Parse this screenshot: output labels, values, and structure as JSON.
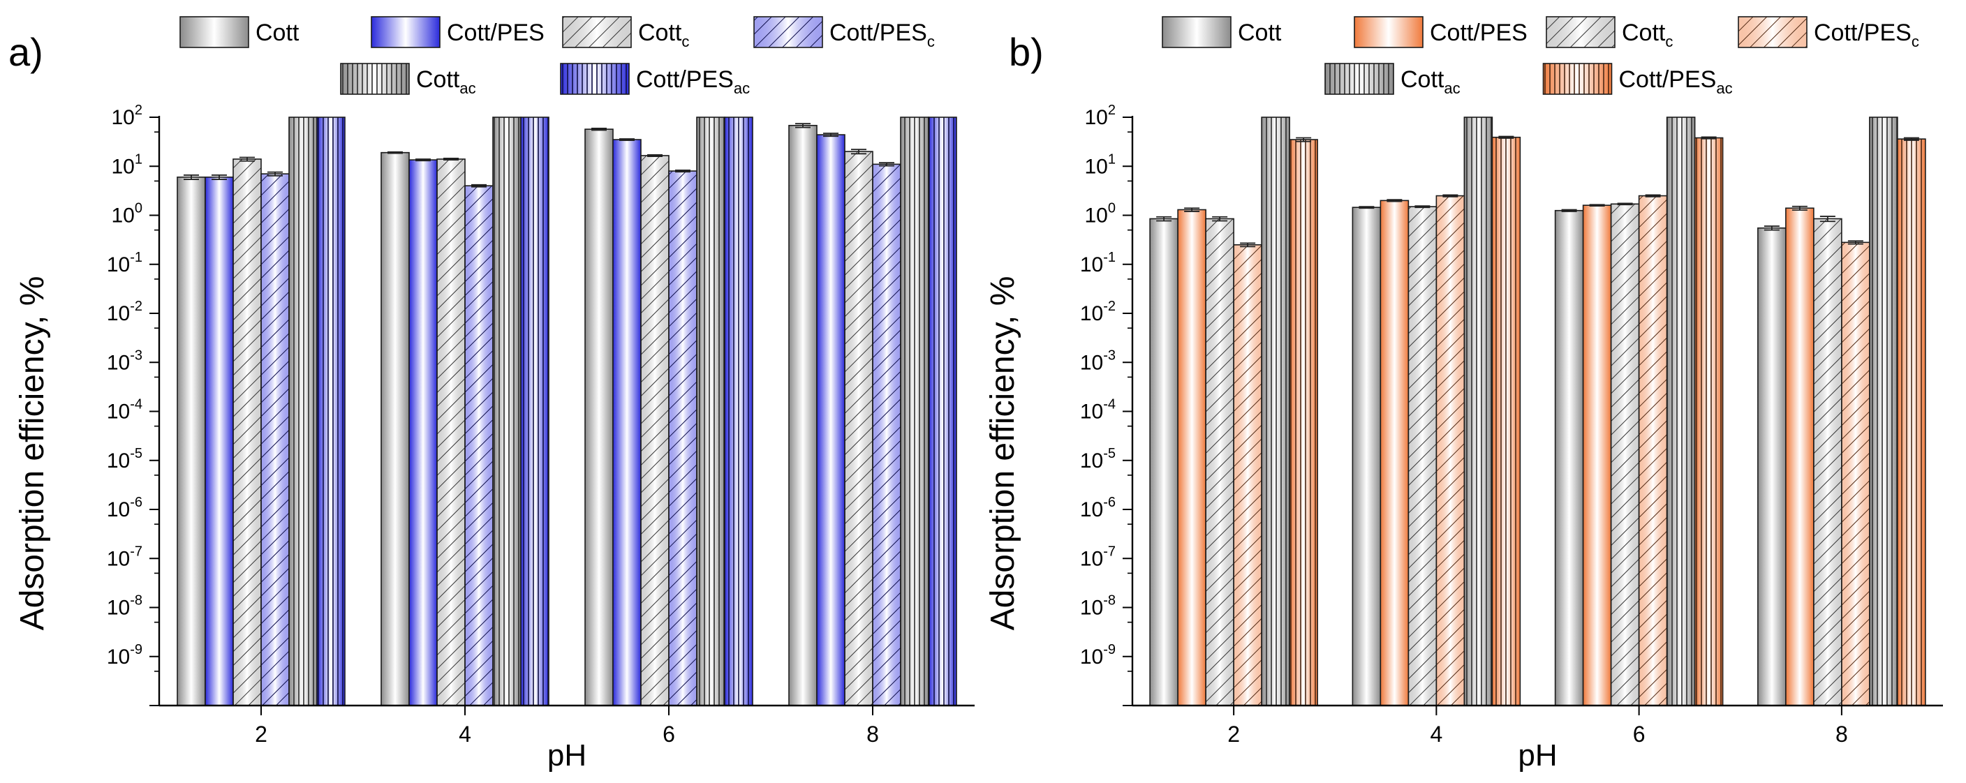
{
  "chart_data": [
    {
      "type": "bar",
      "panel_label": "a)",
      "title": "",
      "xlabel": "pH",
      "ylabel": "Adsorption efficiency, %",
      "yscale": "log",
      "ylim": [
        1e-10,
        100
      ],
      "categories": [
        "2",
        "4",
        "6",
        "8"
      ],
      "yticks": [
        {
          "base": "10",
          "exp": "-9"
        },
        {
          "base": "10",
          "exp": "-8"
        },
        {
          "base": "10",
          "exp": "-7"
        },
        {
          "base": "10",
          "exp": "-6"
        },
        {
          "base": "10",
          "exp": "-5"
        },
        {
          "base": "10",
          "exp": "-4"
        },
        {
          "base": "10",
          "exp": "-3"
        },
        {
          "base": "10",
          "exp": "-2"
        },
        {
          "base": "10",
          "exp": "-1"
        },
        {
          "base": "10",
          "exp": "0"
        },
        {
          "base": "10",
          "exp": "1"
        },
        {
          "base": "10",
          "exp": "2"
        }
      ],
      "legend_position": "top",
      "series": [
        {
          "name": "Cott",
          "sub": "",
          "fill": "gradient",
          "color": "#8c8c8c",
          "values": [
            6.0,
            19.0,
            57.0,
            68.0
          ],
          "errors": [
            0.6,
            0.6,
            2.5,
            6.0
          ]
        },
        {
          "name": "Cott/PES",
          "sub": "",
          "fill": "gradient",
          "color": "#2b2bdc",
          "values": [
            6.0,
            13.5,
            35.0,
            44.0
          ],
          "errors": [
            0.6,
            0.5,
            1.2,
            3.0
          ]
        },
        {
          "name": "Cott",
          "sub": "c",
          "fill": "hatch",
          "color": "#9a9a9a",
          "values": [
            14.0,
            14.0,
            16.5,
            20.0
          ],
          "errors": [
            1.2,
            0.5,
            0.6,
            2.0
          ]
        },
        {
          "name": "Cott/PES",
          "sub": "c",
          "fill": "hatch",
          "color": "#2b2bdc",
          "values": [
            7.0,
            4.0,
            8.0,
            11.0
          ],
          "errors": [
            0.6,
            0.2,
            0.3,
            0.8
          ]
        },
        {
          "name": "Cott",
          "sub": "ac",
          "fill": "vlines",
          "color": "#8c8c8c",
          "values": [
            100,
            100,
            100,
            100
          ],
          "errors": [
            0,
            0,
            0,
            0
          ]
        },
        {
          "name": "Cott/PES",
          "sub": "ac",
          "fill": "vlines",
          "color": "#2b2bdc",
          "values": [
            100,
            100,
            100,
            100
          ],
          "errors": [
            0,
            0,
            0,
            0
          ]
        }
      ]
    },
    {
      "type": "bar",
      "panel_label": "b)",
      "title": "",
      "xlabel": "pH",
      "ylabel": "Adsorption efficiency, %",
      "yscale": "log",
      "ylim": [
        1e-10,
        100
      ],
      "categories": [
        "2",
        "4",
        "6",
        "8"
      ],
      "yticks": [
        {
          "base": "10",
          "exp": "-9"
        },
        {
          "base": "10",
          "exp": "-8"
        },
        {
          "base": "10",
          "exp": "-7"
        },
        {
          "base": "10",
          "exp": "-6"
        },
        {
          "base": "10",
          "exp": "-5"
        },
        {
          "base": "10",
          "exp": "-4"
        },
        {
          "base": "10",
          "exp": "-3"
        },
        {
          "base": "10",
          "exp": "-2"
        },
        {
          "base": "10",
          "exp": "-1"
        },
        {
          "base": "10",
          "exp": "0"
        },
        {
          "base": "10",
          "exp": "1"
        },
        {
          "base": "10",
          "exp": "2"
        }
      ],
      "legend_position": "top",
      "series": [
        {
          "name": "Cott",
          "sub": "",
          "fill": "gradient",
          "color": "#8c8c8c",
          "values": [
            0.85,
            1.45,
            1.25,
            0.55
          ],
          "errors": [
            0.08,
            0.05,
            0.05,
            0.05
          ]
        },
        {
          "name": "Cott/PES",
          "sub": "",
          "fill": "gradient",
          "color": "#f07a3c",
          "values": [
            1.3,
            2.0,
            1.6,
            1.4
          ],
          "errors": [
            0.1,
            0.08,
            0.05,
            0.12
          ]
        },
        {
          "name": "Cott",
          "sub": "c",
          "fill": "hatch",
          "color": "#9a9a9a",
          "values": [
            0.85,
            1.5,
            1.7,
            0.85
          ],
          "errors": [
            0.08,
            0.05,
            0.05,
            0.1
          ]
        },
        {
          "name": "Cott/PES",
          "sub": "c",
          "fill": "hatch",
          "color": "#f07a3c",
          "values": [
            0.25,
            2.5,
            2.5,
            0.28
          ],
          "errors": [
            0.02,
            0.1,
            0.1,
            0.02
          ]
        },
        {
          "name": "Cott",
          "sub": "ac",
          "fill": "vlines",
          "color": "#8c8c8c",
          "values": [
            100,
            100,
            100,
            100
          ],
          "errors": [
            0,
            0,
            0,
            0
          ]
        },
        {
          "name": "Cott/PES",
          "sub": "ac",
          "fill": "vlines",
          "color": "#f07a3c",
          "values": [
            35.0,
            39.0,
            38.0,
            36.0
          ],
          "errors": [
            3.0,
            1.5,
            1.5,
            2.0
          ]
        }
      ]
    }
  ]
}
